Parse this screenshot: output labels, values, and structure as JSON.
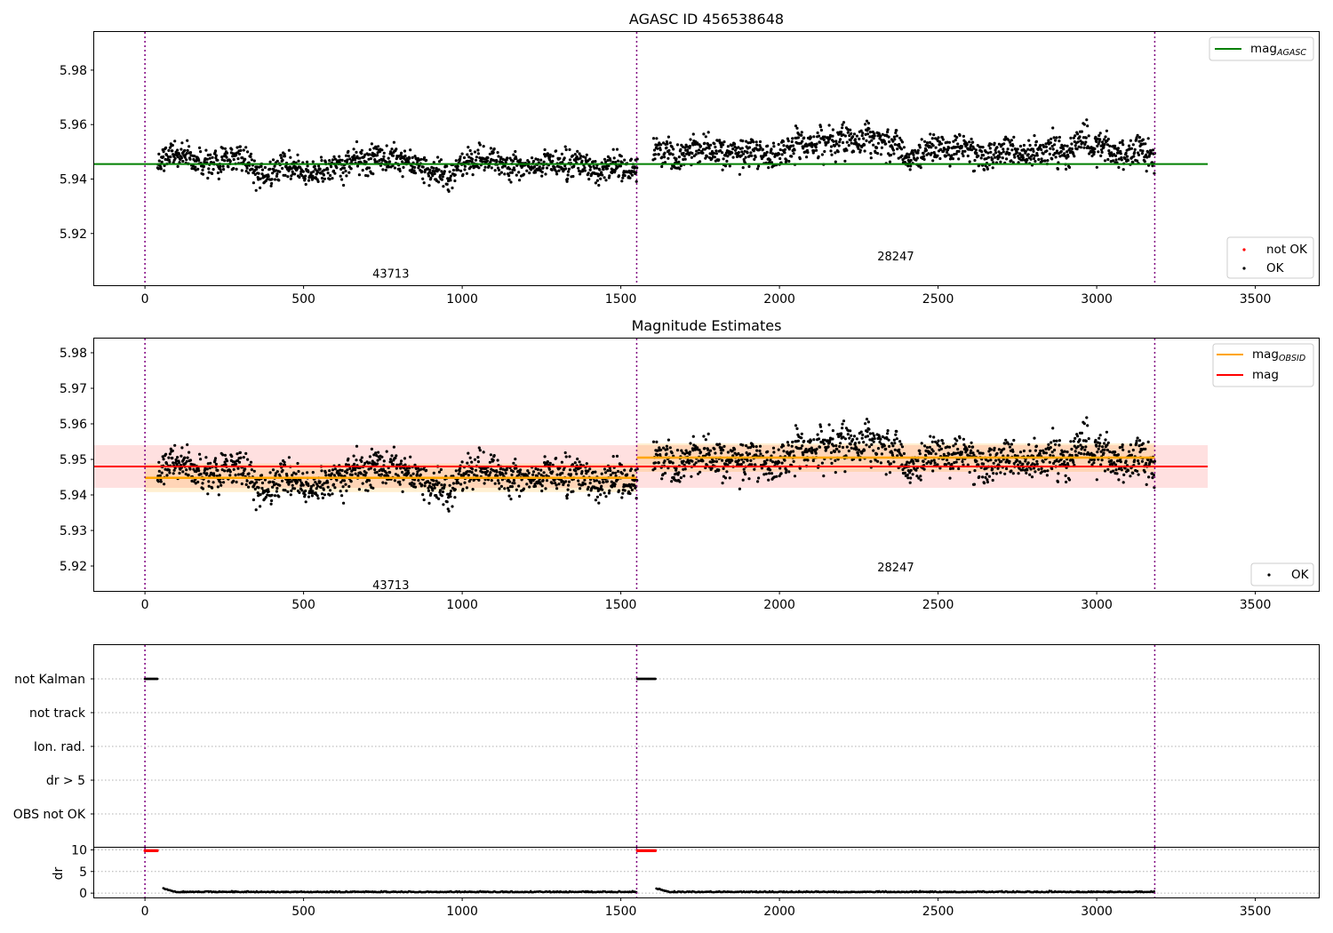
{
  "chart_data": [
    {
      "type": "scatter",
      "title": "AGASC ID 456538648",
      "xlim": [
        -160,
        3700
      ],
      "ylim": [
        5.901,
        5.994
      ],
      "xticks": [
        0,
        500,
        1000,
        1500,
        2000,
        2500,
        3000,
        3500
      ],
      "yticks": [
        5.92,
        5.94,
        5.96,
        5.98
      ],
      "obs_boundaries": [
        0,
        1550,
        3183
      ],
      "observations": [
        {
          "obsid": "43713",
          "x_start": 0,
          "x_end": 1550,
          "label_y": 5.905
        },
        {
          "obsid": "28247",
          "x_start": 1550,
          "x_end": 3183,
          "label_y": 5.9115
        }
      ],
      "reference_lines": [
        {
          "name": "mag",
          "sub": "AGASC",
          "y": 5.9455,
          "x_range": [
            -160,
            3350
          ],
          "color": "#008000"
        }
      ],
      "point_series": [
        {
          "name": "not OK",
          "color": "#ff0000"
        },
        {
          "name": "OK",
          "color": "#000000"
        }
      ],
      "line_legend_loc": "upper right",
      "point_legend_loc": "lower right"
    },
    {
      "type": "scatter",
      "title": "Magnitude Estimates",
      "xlim": [
        -160,
        3700
      ],
      "ylim": [
        5.913,
        5.984
      ],
      "xticks": [
        0,
        500,
        1000,
        1500,
        2000,
        2500,
        3000,
        3500
      ],
      "yticks": [
        5.92,
        5.93,
        5.94,
        5.95,
        5.96,
        5.97,
        5.98
      ],
      "obs_boundaries": [
        0,
        1550,
        3183
      ],
      "observations": [
        {
          "obsid": "43713",
          "x_start": 0,
          "x_end": 1550,
          "mean": 5.9448,
          "band": [
            5.9408,
            5.9488
          ],
          "label_y": 5.9145
        },
        {
          "obsid": "28247",
          "x_start": 1550,
          "x_end": 3183,
          "mean": 5.9505,
          "band": [
            5.9465,
            5.9545
          ],
          "label_y": 5.9195
        }
      ],
      "reference_lines": [
        {
          "name": "mag",
          "sub": "OBSID",
          "color": "#ffa500"
        },
        {
          "name": "mag",
          "sub": "",
          "y": 5.948,
          "band": [
            5.942,
            5.954
          ],
          "x_range": [
            -160,
            3350
          ],
          "color": "#ff0000"
        }
      ],
      "point_series": [
        {
          "name": "OK",
          "color": "#000000"
        }
      ],
      "line_legend_loc": "upper right",
      "point_legend_loc": "lower right"
    },
    {
      "type": "scatter",
      "xlim": [
        -160,
        3700
      ],
      "xticks": [
        0,
        500,
        1000,
        1500,
        2000,
        2500,
        3000,
        3500
      ],
      "obs_boundaries": [
        0,
        1550,
        3183
      ],
      "flag_categories": [
        "not Kalman",
        "not track",
        "Ion. rad.",
        "dr > 5",
        "OBS not OK"
      ],
      "flagged_segments": [
        {
          "flag": "not Kalman",
          "x_start": 0,
          "x_end": 40
        },
        {
          "flag": "not Kalman",
          "x_start": 1552,
          "x_end": 1610
        }
      ]
    },
    {
      "type": "line",
      "ylabel": "dr",
      "xlim": [
        -160,
        3700
      ],
      "ylim": [
        -1,
        10.5
      ],
      "yticks": [
        0,
        5,
        10
      ],
      "xticks": [
        0,
        500,
        1000,
        1500,
        2000,
        2500,
        3000,
        3500
      ],
      "obs_boundaries": [
        0,
        1550,
        3183
      ],
      "clipped_points": [
        {
          "x_start": 0,
          "x_end": 40,
          "y": 9.8
        },
        {
          "x_start": 1552,
          "x_end": 1610,
          "y": 9.8
        }
      ],
      "typical_dr": 0.2
    }
  ]
}
